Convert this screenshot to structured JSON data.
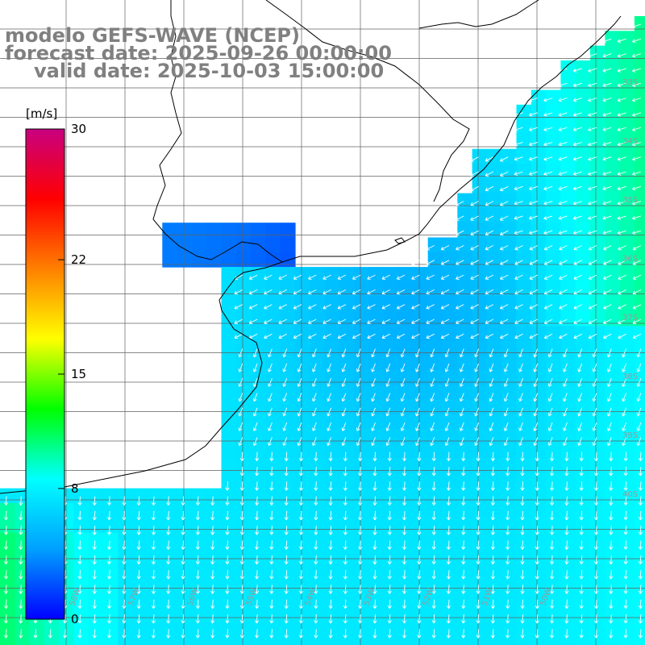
{
  "title": {
    "line1": "modelo GEFS-WAVE (NCEP)",
    "line2": "forecast date: 2025-09-26 00:00:00",
    "line3": "valid date: 2025-10-03 15:00:00"
  },
  "colorbar": {
    "unit": "[m/s]",
    "ticks": [
      {
        "label": "30",
        "value": 30
      },
      {
        "label": "22",
        "value": 22
      },
      {
        "label": "15",
        "value": 15
      },
      {
        "label": "8",
        "value": 8
      },
      {
        "label": "0",
        "value": 0
      }
    ],
    "min": 0,
    "max": 30,
    "colors": [
      "#0000ff",
      "#00a0ff",
      "#00ffff",
      "#00ff00",
      "#ffff00",
      "#ff8000",
      "#ff0000",
      "#c80080"
    ]
  },
  "map": {
    "field": "wind speed and direction",
    "background": "#ffffff",
    "coastline_color": "#000000",
    "grid_color": "#606060",
    "vector_color": "#ffffff",
    "lon_labels": [
      "58W",
      "57W",
      "56W",
      "55W",
      "54W",
      "53W",
      "52W",
      "51W",
      "50W"
    ],
    "lat_labels": [
      "33S",
      "34S",
      "35S",
      "36S",
      "37S",
      "38S",
      "39S",
      "40S"
    ]
  }
}
